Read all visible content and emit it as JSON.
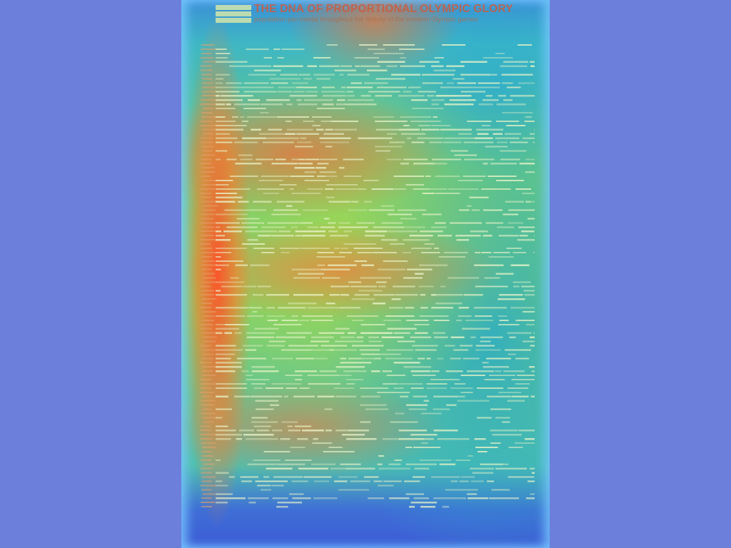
{
  "poster": {
    "title": "THE DNA OF PROPORTIONAL OLYMPIC GLORY",
    "subtitle": "population-per-medal throughout the history of the modern Olympic games",
    "legend": [
      "",
      "",
      ""
    ],
    "credits": [
      "",
      "",
      ""
    ]
  },
  "colors": {
    "background": "#6b7fdb",
    "bar": "#e9f3c8",
    "title": "#cd5a3c"
  },
  "rows": 110
}
